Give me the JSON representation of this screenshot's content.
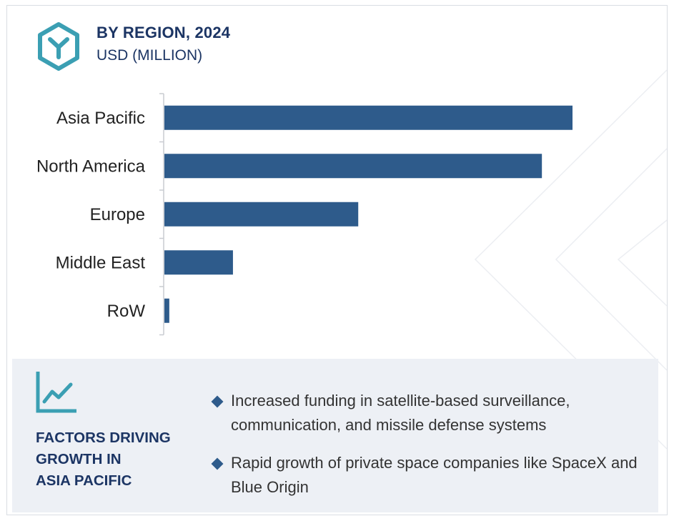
{
  "header": {
    "title": "BY REGION, 2024",
    "subtitle": "USD (MILLION)",
    "logo_icon": "hexagon-y-icon"
  },
  "colors": {
    "bar": "#2e5b8b",
    "title": "#1c3564",
    "accent": "#3b9fb3",
    "panel": "#edf0f5"
  },
  "chart_data": {
    "type": "bar",
    "orientation": "horizontal",
    "categories": [
      "Asia Pacific",
      "North America",
      "Europe",
      "Middle East",
      "RoW"
    ],
    "values": [
      100,
      92.5,
      47.5,
      16.8,
      1.2
    ],
    "xlim": [
      0,
      100
    ],
    "title": "",
    "xlabel": "",
    "ylabel": "",
    "grid": false,
    "axis_value_labels_shown": false
  },
  "factors": {
    "icon": "trend-up-chart-icon",
    "title_lines": [
      "FACTORS DRIVING",
      "GROWTH IN",
      "ASIA PACIFIC"
    ],
    "bullets": [
      "Increased funding in satellite-based surveillance, communication, and missile defense systems",
      "Rapid growth of private space companies like SpaceX and Blue Origin"
    ]
  }
}
